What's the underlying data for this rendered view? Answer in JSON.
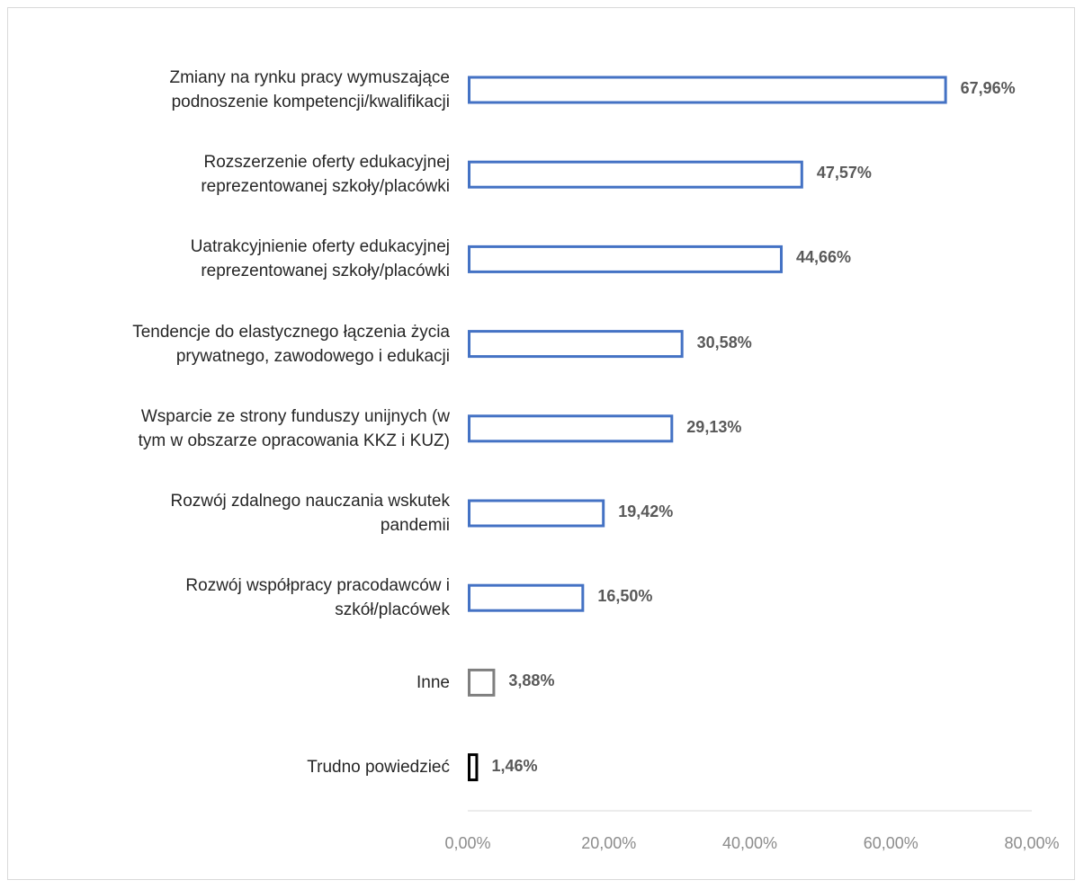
{
  "chart_data": {
    "type": "bar",
    "orientation": "horizontal",
    "categories": [
      "Zmiany na rynku pracy wymuszające\npodnoszenie kompetencji/kwalifikacji",
      "Rozszerzenie oferty edukacyjnej\nreprezentowanej szkoły/placówki",
      "Uatrakcyjnienie oferty edukacyjnej\nreprezentowanej szkoły/placówki",
      "Tendencje do elastycznego łączenia życia\nprywatnego, zawodowego i edukacji",
      "Wsparcie ze strony funduszy unijnych (w\ntym w obszarze opracowania KKZ i KUZ)",
      "Rozwój zdalnego nauczania wskutek\npandemii",
      "Rozwój współpracy pracodawców i\nszkół/placówek",
      "Inne",
      "Trudno powiedzieć"
    ],
    "values": [
      67.96,
      47.57,
      44.66,
      30.58,
      29.13,
      19.42,
      16.5,
      3.88,
      1.46
    ],
    "value_labels": [
      "67,96%",
      "47,57%",
      "44,66%",
      "30,58%",
      "29,13%",
      "19,42%",
      "16,50%",
      "3,88%",
      "1,46%"
    ],
    "colors": [
      "#4472c4",
      "#4472c4",
      "#4472c4",
      "#4472c4",
      "#4472c4",
      "#4472c4",
      "#4472c4",
      "#7f7f7f",
      "#000000"
    ],
    "xlim": [
      0,
      80
    ],
    "xticks": [
      {
        "value": 0,
        "label": "0,00%"
      },
      {
        "value": 20,
        "label": "20,00%"
      },
      {
        "value": 40,
        "label": "40,00%"
      },
      {
        "value": 60,
        "label": "60,00%"
      },
      {
        "value": 80,
        "label": "80,00%"
      }
    ],
    "grid": false
  }
}
